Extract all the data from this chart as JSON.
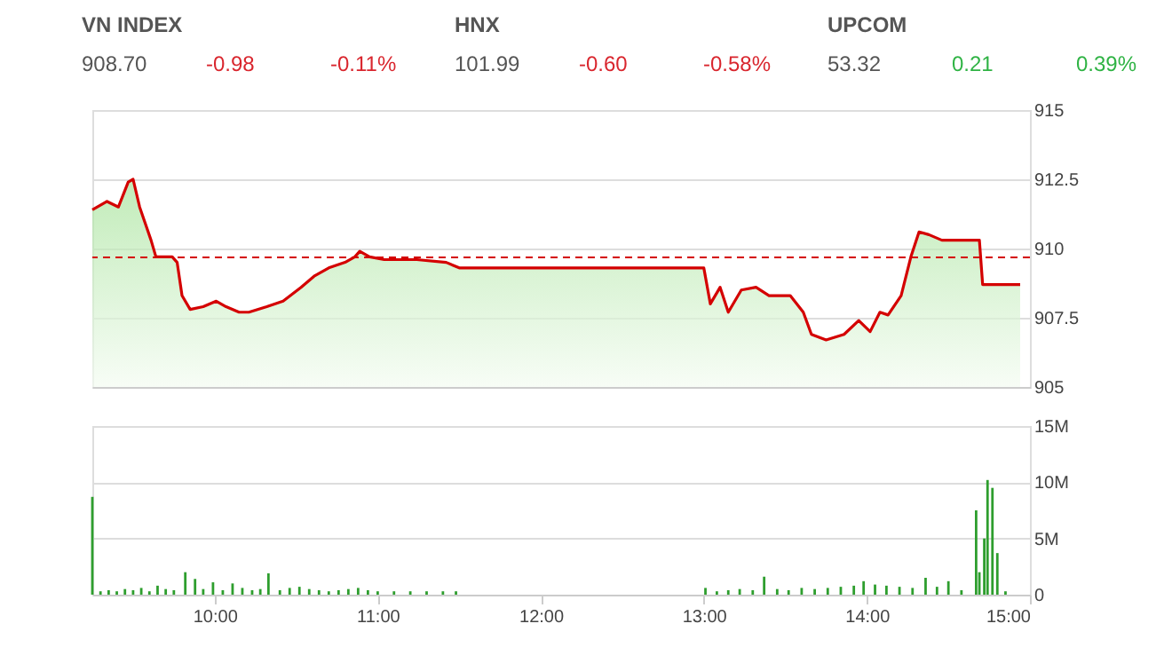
{
  "chart_data": [
    {
      "type": "other",
      "annotations": [
        "VN INDEX",
        "908.70",
        "-0.98",
        "-0.11%",
        "HNX",
        "101.99",
        "-0.60",
        "-0.58%",
        "UPCOM",
        "53.32",
        "0.21",
        "0.39%"
      ]
    },
    {
      "type": "area",
      "tick_labels": "y",
      "grid": "y",
      "x": [
        9.25,
        9.34,
        9.41,
        9.47,
        9.5,
        9.54,
        9.61,
        9.64,
        9.74,
        9.77,
        9.8,
        9.85,
        9.93,
        10.01,
        10.07,
        10.15,
        10.21,
        10.32,
        10.42,
        10.53,
        10.61,
        10.7,
        10.8,
        10.86,
        10.89,
        10.95,
        11.04,
        11.15,
        11.24,
        11.42,
        11.5,
        13.0,
        13.04,
        13.1,
        13.15,
        13.23,
        13.32,
        13.4,
        13.53,
        13.61,
        13.66,
        13.75,
        13.86,
        13.95,
        14.02,
        14.08,
        14.13,
        14.21,
        14.27,
        14.32,
        14.38,
        14.46,
        14.69,
        14.71,
        14.94
      ],
      "series": [
        {
          "color": "#d40000",
          "values": [
            911.4,
            911.7,
            911.5,
            912.4,
            912.5,
            911.5,
            910.3,
            909.7,
            909.7,
            909.5,
            908.3,
            907.8,
            907.9,
            908.1,
            907.9,
            907.7,
            907.7,
            907.9,
            908.1,
            908.6,
            909.0,
            909.3,
            909.5,
            909.7,
            909.9,
            909.7,
            909.6,
            909.6,
            909.6,
            909.5,
            909.3,
            909.3,
            908.0,
            908.6,
            907.7,
            908.5,
            908.6,
            908.3,
            908.3,
            907.7,
            906.9,
            906.7,
            906.9,
            907.4,
            907.0,
            907.7,
            907.6,
            908.3,
            909.7,
            910.6,
            910.5,
            910.3,
            910.3,
            908.7,
            908.7
          ]
        }
      ],
      "xlim": [
        9.25,
        15
      ],
      "ylim": [
        905,
        915
      ],
      "yticks": [
        905,
        907.5,
        910,
        912.5,
        915
      ],
      "ref_lines": [
        {
          "axis": "y",
          "value": 909.68,
          "color": "#d40000",
          "line_style": "dashed"
        }
      ]
    },
    {
      "type": "bar",
      "grid": "y",
      "x": [
        9.25,
        9.3,
        9.35,
        9.4,
        9.45,
        9.5,
        9.55,
        9.6,
        9.65,
        9.7,
        9.75,
        9.82,
        9.88,
        9.93,
        9.99,
        10.05,
        10.11,
        10.17,
        10.23,
        10.28,
        10.33,
        10.4,
        10.46,
        10.52,
        10.58,
        10.64,
        10.7,
        10.76,
        10.82,
        10.88,
        10.94,
        11.0,
        11.1,
        11.2,
        11.3,
        11.4,
        11.48,
        13.01,
        13.08,
        13.15,
        13.22,
        13.3,
        13.37,
        13.45,
        13.52,
        13.6,
        13.68,
        13.76,
        13.84,
        13.92,
        13.98,
        14.05,
        14.12,
        14.2,
        14.28,
        14.36,
        14.43,
        14.5,
        14.58,
        14.67,
        14.69,
        14.72,
        14.74,
        14.77,
        14.8,
        14.85
      ],
      "series": [
        {
          "color": "#2e9e2e",
          "values": [
            8.7,
            0.3,
            0.4,
            0.3,
            0.5,
            0.4,
            0.6,
            0.3,
            0.8,
            0.5,
            0.4,
            2.0,
            1.4,
            0.5,
            1.1,
            0.4,
            1.0,
            0.6,
            0.4,
            0.5,
            1.9,
            0.4,
            0.6,
            0.7,
            0.5,
            0.4,
            0.3,
            0.4,
            0.5,
            0.6,
            0.4,
            0.3,
            0.3,
            0.3,
            0.3,
            0.3,
            0.3,
            0.6,
            0.3,
            0.4,
            0.5,
            0.4,
            1.6,
            0.5,
            0.4,
            0.6,
            0.5,
            0.6,
            0.7,
            0.8,
            1.2,
            0.9,
            0.8,
            0.7,
            0.6,
            1.5,
            0.7,
            1.2,
            0.4,
            7.5,
            2.0,
            5.0,
            10.2,
            9.5,
            3.7,
            0.3
          ]
        }
      ],
      "xlim": [
        9.25,
        15
      ],
      "xticks": [
        {
          "value": 10,
          "label": "10:00"
        },
        {
          "value": 11,
          "label": "11:00"
        },
        {
          "value": 12,
          "label": "12:00"
        },
        {
          "value": 13,
          "label": "13:00"
        },
        {
          "value": 14,
          "label": "14:00"
        },
        {
          "value": 15,
          "label": "15:00"
        }
      ],
      "ylim": [
        0,
        15
      ],
      "yticks": [
        0,
        {
          "value": 5,
          "label": "5M"
        },
        {
          "value": 10,
          "label": "10M"
        },
        {
          "value": 15,
          "label": "15M"
        }
      ]
    }
  ]
}
